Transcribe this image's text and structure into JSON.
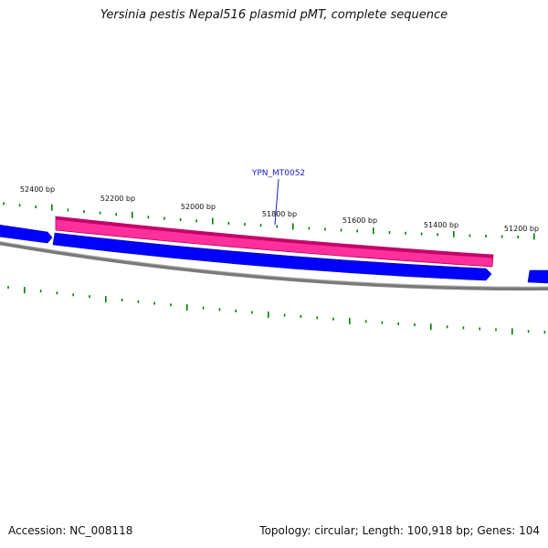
{
  "title": "Yersinia pestis Nepal516 plasmid pMT, complete sequence",
  "footer": {
    "accession": "Accession: NC_008118",
    "summary": "Topology: circular; Length: 100,918 bp; Genes: 104"
  },
  "colors": {
    "background": "#ffffff",
    "backbone": "#808080",
    "forward_gene": "#0000ff",
    "reverse_gene": "#ff1493",
    "gc_ticks": "#008000",
    "gene_label": "#1a1ac8"
  },
  "ruler": {
    "labels": [
      "52400 bp",
      "52200 bp",
      "52000 bp",
      "51800 bp",
      "51600 bp",
      "51400 bp",
      "51200 bp"
    ]
  },
  "genes": [
    {
      "name": "",
      "strand": "forward"
    },
    {
      "name": "YPN_MT0052",
      "strand": "reverse"
    },
    {
      "name": "",
      "strand": "forward"
    },
    {
      "name": "",
      "strand": "forward"
    }
  ]
}
